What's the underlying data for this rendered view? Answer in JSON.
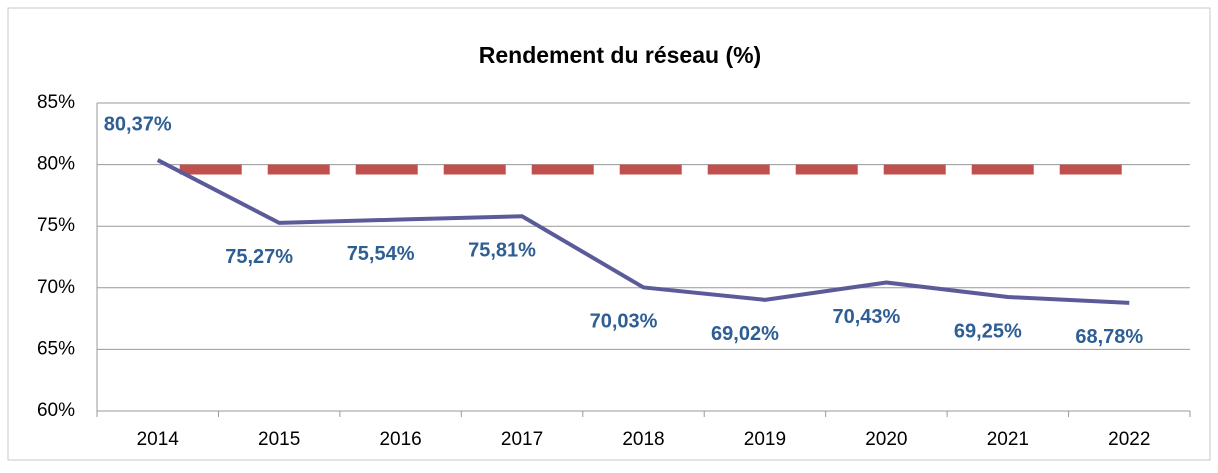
{
  "chart_data": {
    "type": "line",
    "title": "Rendement du réseau (%)",
    "categories": [
      "2014",
      "2015",
      "2016",
      "2017",
      "2018",
      "2019",
      "2020",
      "2021",
      "2022"
    ],
    "series": [
      {
        "name": null,
        "color": "#5b5b9a",
        "values": [
          80.37,
          75.27,
          75.54,
          75.81,
          70.03,
          69.02,
          70.43,
          69.25,
          68.78
        ],
        "value_labels": [
          "80,37%",
          "75,27%",
          "75,54%",
          "75,81%",
          "70,03%",
          "69,02%",
          "70,43%",
          "69,25%",
          "68,78%"
        ]
      },
      {
        "name": null,
        "color": "#c0504d",
        "dashed": true,
        "values": [
          79.6,
          79.6,
          79.6,
          79.6,
          79.6,
          79.6,
          79.6,
          79.6,
          79.6
        ]
      }
    ],
    "ylim": [
      60,
      85
    ],
    "yticks": [
      {
        "value": 60,
        "label": "60%"
      },
      {
        "value": 65,
        "label": "65%"
      },
      {
        "value": 70,
        "label": "70%"
      },
      {
        "value": 75,
        "label": "75%"
      },
      {
        "value": 80,
        "label": "80%"
      },
      {
        "value": 85,
        "label": "85%"
      }
    ],
    "grid": true
  }
}
